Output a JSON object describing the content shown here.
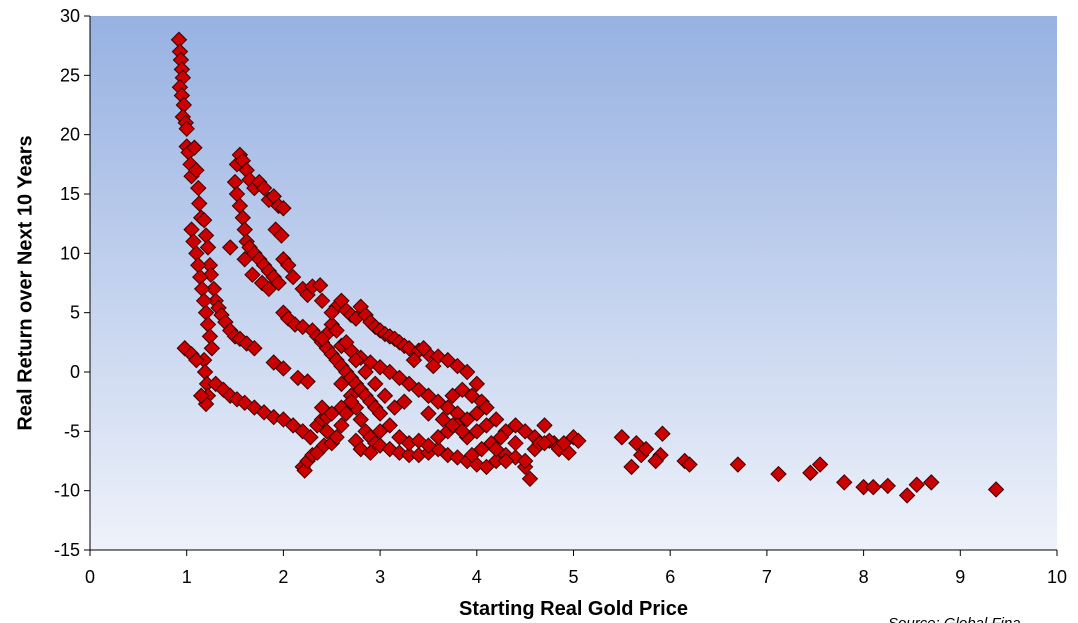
{
  "chart_data": {
    "type": "scatter",
    "title": "",
    "xlabel": "Starting Real Gold Price",
    "ylabel": "Real Return over Next 10 Years",
    "source": "Source: Global Fina",
    "xlim": [
      0,
      10
    ],
    "ylim": [
      -15,
      30
    ],
    "xticks": [
      "0",
      "1",
      "2",
      "3",
      "4",
      "5",
      "6",
      "7",
      "8",
      "9",
      "10"
    ],
    "yticks": [
      "-15",
      "-10",
      "-5",
      "0",
      "5",
      "10",
      "15",
      "20",
      "25",
      "30"
    ],
    "grid": false,
    "legend": "none",
    "colors": {
      "marker_fill": "#cc0000",
      "marker_stroke": "#3a0000",
      "plot_bg_top": "#97b1e2",
      "plot_bg_bottom": "#eef2fa"
    },
    "series": [
      {
        "marker": "diamond",
        "points": [
          [
            0.92,
            28.0
          ],
          [
            0.93,
            27.0
          ],
          [
            0.94,
            26.3
          ],
          [
            0.95,
            25.5
          ],
          [
            0.96,
            24.8
          ],
          [
            0.93,
            24.0
          ],
          [
            0.95,
            23.3
          ],
          [
            0.97,
            22.5
          ],
          [
            0.96,
            21.5
          ],
          [
            0.99,
            21.0
          ],
          [
            1.0,
            20.5
          ],
          [
            1.0,
            19.0
          ],
          [
            1.02,
            18.5
          ],
          [
            1.04,
            17.5
          ],
          [
            1.05,
            16.5
          ],
          [
            1.08,
            18.9
          ],
          [
            1.1,
            17.0
          ],
          [
            1.12,
            15.5
          ],
          [
            1.13,
            14.2
          ],
          [
            1.15,
            13.0
          ],
          [
            1.18,
            12.8
          ],
          [
            1.2,
            11.5
          ],
          [
            1.22,
            10.5
          ],
          [
            1.24,
            9.0
          ],
          [
            1.25,
            8.2
          ],
          [
            1.28,
            7.0
          ],
          [
            1.3,
            6.0
          ],
          [
            1.33,
            5.4
          ],
          [
            1.36,
            4.8
          ],
          [
            1.4,
            4.2
          ],
          [
            1.45,
            3.5
          ],
          [
            1.5,
            3.0
          ],
          [
            1.55,
            2.8
          ],
          [
            1.62,
            2.4
          ],
          [
            1.7,
            2.0
          ],
          [
            1.05,
            12.0
          ],
          [
            1.07,
            11.0
          ],
          [
            1.1,
            10.0
          ],
          [
            1.12,
            9.0
          ],
          [
            1.14,
            8.0
          ],
          [
            1.16,
            7.0
          ],
          [
            1.18,
            6.0
          ],
          [
            1.2,
            5.0
          ],
          [
            1.22,
            4.0
          ],
          [
            1.24,
            3.0
          ],
          [
            1.26,
            2.0
          ],
          [
            1.18,
            1.0
          ],
          [
            1.19,
            0.0
          ],
          [
            1.21,
            -1.0
          ],
          [
            1.22,
            -2.0
          ],
          [
            1.2,
            -2.7
          ],
          [
            1.15,
            -2.0
          ],
          [
            0.98,
            2.0
          ],
          [
            1.05,
            1.5
          ],
          [
            1.1,
            1.0
          ],
          [
            1.3,
            -1.0
          ],
          [
            1.38,
            -1.5
          ],
          [
            1.45,
            -2.0
          ],
          [
            1.52,
            -2.3
          ],
          [
            1.6,
            -2.6
          ],
          [
            1.7,
            -3.0
          ],
          [
            1.8,
            -3.4
          ],
          [
            1.9,
            -3.8
          ],
          [
            2.0,
            -4.0
          ],
          [
            2.1,
            -4.5
          ],
          [
            2.2,
            -5.0
          ],
          [
            2.28,
            -5.5
          ],
          [
            2.35,
            -4.5
          ],
          [
            2.4,
            -4.0
          ],
          [
            2.45,
            -3.8
          ],
          [
            2.5,
            -3.5
          ],
          [
            2.6,
            -3.0
          ],
          [
            2.2,
            -8.0
          ],
          [
            2.22,
            -8.3
          ],
          [
            2.25,
            -7.5
          ],
          [
            2.3,
            -7.0
          ],
          [
            2.35,
            -6.8
          ],
          [
            2.42,
            -6.2
          ],
          [
            1.9,
            0.8
          ],
          [
            2.0,
            0.3
          ],
          [
            2.15,
            -0.5
          ],
          [
            2.25,
            -0.8
          ],
          [
            1.52,
            17.5
          ],
          [
            1.55,
            18.3
          ],
          [
            1.58,
            17.8
          ],
          [
            1.62,
            17.0
          ],
          [
            1.65,
            16.2
          ],
          [
            1.7,
            15.5
          ],
          [
            1.75,
            16.0
          ],
          [
            1.8,
            15.5
          ],
          [
            1.85,
            14.5
          ],
          [
            1.9,
            14.8
          ],
          [
            1.95,
            14.0
          ],
          [
            2.0,
            13.8
          ],
          [
            1.5,
            16.0
          ],
          [
            1.52,
            15.0
          ],
          [
            1.55,
            14.0
          ],
          [
            1.58,
            13.0
          ],
          [
            1.6,
            12.0
          ],
          [
            1.62,
            11.0
          ],
          [
            1.65,
            10.5
          ],
          [
            1.7,
            10.0
          ],
          [
            1.75,
            9.5
          ],
          [
            1.8,
            9.0
          ],
          [
            1.85,
            8.5
          ],
          [
            1.9,
            8.0
          ],
          [
            1.95,
            7.5
          ],
          [
            2.0,
            9.5
          ],
          [
            1.45,
            10.5
          ],
          [
            1.6,
            9.5
          ],
          [
            1.68,
            8.2
          ],
          [
            1.78,
            7.5
          ],
          [
            1.85,
            7.0
          ],
          [
            1.92,
            12.0
          ],
          [
            1.98,
            11.5
          ],
          [
            2.05,
            9.0
          ],
          [
            2.1,
            8.0
          ],
          [
            2.2,
            7.0
          ],
          [
            2.25,
            6.5
          ],
          [
            2.3,
            7.2
          ],
          [
            2.38,
            7.3
          ],
          [
            2.0,
            5.0
          ],
          [
            2.05,
            4.5
          ],
          [
            2.12,
            4.0
          ],
          [
            2.2,
            3.8
          ],
          [
            2.3,
            3.5
          ],
          [
            2.35,
            3.0
          ],
          [
            2.4,
            2.5
          ],
          [
            2.45,
            2.0
          ],
          [
            2.5,
            1.5
          ],
          [
            2.55,
            1.0
          ],
          [
            2.6,
            0.5
          ],
          [
            2.65,
            0.0
          ],
          [
            2.7,
            -0.5
          ],
          [
            2.75,
            -1.0
          ],
          [
            2.8,
            -1.5
          ],
          [
            2.85,
            -2.0
          ],
          [
            2.9,
            -2.5
          ],
          [
            2.95,
            -3.0
          ],
          [
            3.0,
            -3.5
          ],
          [
            2.55,
            5.5
          ],
          [
            2.6,
            6.0
          ],
          [
            2.65,
            5.2
          ],
          [
            2.7,
            4.8
          ],
          [
            2.75,
            4.5
          ],
          [
            2.8,
            5.5
          ],
          [
            2.85,
            4.8
          ],
          [
            2.9,
            4.2
          ],
          [
            2.95,
            3.8
          ],
          [
            3.0,
            3.5
          ],
          [
            3.05,
            3.2
          ],
          [
            3.1,
            3.0
          ],
          [
            3.15,
            2.8
          ],
          [
            3.2,
            2.5
          ],
          [
            3.25,
            2.2
          ],
          [
            3.3,
            2.0
          ],
          [
            3.4,
            1.8
          ],
          [
            3.5,
            1.5
          ],
          [
            3.6,
            1.3
          ],
          [
            3.7,
            1.0
          ],
          [
            3.8,
            0.5
          ],
          [
            3.9,
            0.0
          ],
          [
            4.0,
            -1.0
          ],
          [
            3.85,
            -1.5
          ],
          [
            3.95,
            -2.0
          ],
          [
            4.05,
            -2.5
          ],
          [
            2.5,
            4.0
          ],
          [
            2.45,
            3.2
          ],
          [
            2.4,
            2.8
          ],
          [
            2.6,
            2.2
          ],
          [
            2.7,
            1.8
          ],
          [
            2.8,
            1.2
          ],
          [
            2.9,
            0.8
          ],
          [
            3.0,
            0.4
          ],
          [
            3.1,
            0.0
          ],
          [
            3.2,
            -0.5
          ],
          [
            3.3,
            -1.0
          ],
          [
            3.4,
            -1.5
          ],
          [
            3.5,
            -2.0
          ],
          [
            3.6,
            -2.5
          ],
          [
            3.7,
            -3.0
          ],
          [
            3.8,
            -3.5
          ],
          [
            3.9,
            -4.0
          ],
          [
            2.6,
            -1.0
          ],
          [
            2.7,
            -2.0
          ],
          [
            2.75,
            -3.0
          ],
          [
            2.8,
            -4.0
          ],
          [
            2.85,
            -5.0
          ],
          [
            2.9,
            -5.5
          ],
          [
            2.95,
            -6.0
          ],
          [
            3.0,
            -6.2
          ],
          [
            3.1,
            -6.5
          ],
          [
            3.2,
            -6.8
          ],
          [
            3.3,
            -7.0
          ],
          [
            3.4,
            -7.0
          ],
          [
            3.5,
            -6.8
          ],
          [
            3.6,
            -6.5
          ],
          [
            3.7,
            -7.0
          ],
          [
            3.8,
            -7.2
          ],
          [
            3.9,
            -7.5
          ],
          [
            4.0,
            -7.8
          ],
          [
            4.1,
            -8.0
          ],
          [
            4.2,
            -7.5
          ],
          [
            4.3,
            -7.0
          ],
          [
            4.4,
            -7.2
          ],
          [
            4.5,
            -8.0
          ],
          [
            4.55,
            -9.0
          ],
          [
            2.4,
            -3.0
          ],
          [
            2.45,
            -5.0
          ],
          [
            2.5,
            -6.0
          ],
          [
            2.55,
            -5.5
          ],
          [
            2.6,
            -4.5
          ],
          [
            2.65,
            -3.5
          ],
          [
            2.7,
            -2.5
          ],
          [
            2.75,
            -5.8
          ],
          [
            2.8,
            -6.5
          ],
          [
            2.9,
            -6.8
          ],
          [
            3.0,
            -5.0
          ],
          [
            3.1,
            -4.5
          ],
          [
            3.2,
            -5.5
          ],
          [
            3.3,
            -6.0
          ],
          [
            3.4,
            -5.8
          ],
          [
            3.5,
            -6.2
          ],
          [
            3.6,
            -5.5
          ],
          [
            3.7,
            -5.0
          ],
          [
            3.8,
            -4.5
          ],
          [
            3.9,
            -5.5
          ],
          [
            4.0,
            -5.0
          ],
          [
            4.1,
            -4.5
          ],
          [
            4.2,
            -4.0
          ],
          [
            4.3,
            -5.0
          ],
          [
            4.4,
            -4.5
          ],
          [
            4.5,
            -5.0
          ],
          [
            4.6,
            -5.5
          ],
          [
            4.7,
            -4.5
          ],
          [
            4.8,
            -6.0
          ],
          [
            4.85,
            -6.5
          ],
          [
            4.95,
            -6.8
          ],
          [
            5.0,
            -5.5
          ],
          [
            5.05,
            -5.8
          ],
          [
            4.6,
            -6.5
          ],
          [
            4.65,
            -6.0
          ],
          [
            4.75,
            -5.8
          ],
          [
            4.25,
            -5.5
          ],
          [
            4.15,
            -6.0
          ],
          [
            4.05,
            -6.5
          ],
          [
            3.95,
            -7.0
          ],
          [
            4.1,
            -3.0
          ],
          [
            4.0,
            -3.5
          ],
          [
            3.75,
            -2.0
          ],
          [
            3.55,
            0.5
          ],
          [
            3.45,
            2.0
          ],
          [
            3.35,
            1.0
          ],
          [
            3.25,
            -2.5
          ],
          [
            3.15,
            -3.0
          ],
          [
            3.05,
            -2.0
          ],
          [
            2.95,
            -1.0
          ],
          [
            2.85,
            0.0
          ],
          [
            2.75,
            1.0
          ],
          [
            2.65,
            2.5
          ],
          [
            2.55,
            3.5
          ],
          [
            2.5,
            5.0
          ],
          [
            2.4,
            6.0
          ],
          [
            3.5,
            -3.5
          ],
          [
            3.65,
            -4.0
          ],
          [
            3.75,
            -4.5
          ],
          [
            3.85,
            -5.0
          ],
          [
            4.2,
            -6.5
          ],
          [
            4.3,
            -7.5
          ],
          [
            4.4,
            -6.0
          ],
          [
            4.5,
            -7.5
          ],
          [
            4.7,
            -6.0
          ],
          [
            4.9,
            -6.0
          ],
          [
            5.5,
            -5.5
          ],
          [
            5.6,
            -8.0
          ],
          [
            5.65,
            -6.0
          ],
          [
            5.7,
            -7.0
          ],
          [
            5.75,
            -6.5
          ],
          [
            5.9,
            -7.0
          ],
          [
            5.92,
            -5.2
          ],
          [
            5.85,
            -7.5
          ],
          [
            6.15,
            -7.5
          ],
          [
            6.2,
            -7.8
          ],
          [
            6.7,
            -7.8
          ],
          [
            7.12,
            -8.6
          ],
          [
            7.45,
            -8.5
          ],
          [
            7.55,
            -7.8
          ],
          [
            7.8,
            -9.3
          ],
          [
            8.0,
            -9.7
          ],
          [
            8.1,
            -9.7
          ],
          [
            8.25,
            -9.6
          ],
          [
            8.45,
            -10.4
          ],
          [
            8.55,
            -9.5
          ],
          [
            8.7,
            -9.3
          ],
          [
            9.37,
            -9.9
          ]
        ]
      }
    ]
  }
}
